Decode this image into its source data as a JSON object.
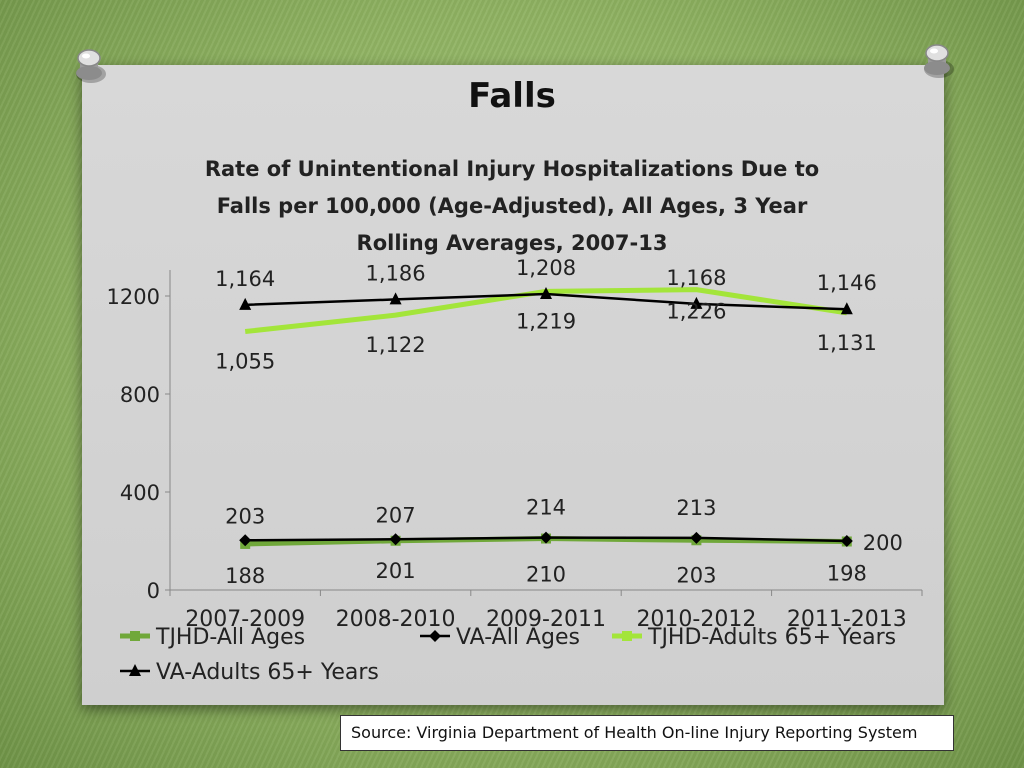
{
  "slide": {
    "title": "Falls",
    "source": "Source: Virginia Department of Health On-line Injury Reporting System"
  },
  "chart_data": {
    "type": "line",
    "title": "Rate of Unintentional Injury Hospitalizations Due to Falls per 100,000 (Age-Adjusted), All Ages, 3 Year Rolling Averages, 2007-13",
    "title_lines": [
      "Rate of Unintentional Injury Hospitalizations Due to",
      "Falls per 100,000 (Age-Adjusted), All Ages, 3 Year",
      "Rolling Averages, 2007-13"
    ],
    "categories": [
      "2007-2009",
      "2008-2010",
      "2009-2011",
      "2010-2012",
      "2011-2013"
    ],
    "ylim": [
      0,
      1200
    ],
    "yticks": [
      0,
      400,
      800,
      1200
    ],
    "grid": false,
    "legend_position": "bottom",
    "series": [
      {
        "name": "TJHD-All Ages",
        "values": [
          188,
          201,
          210,
          203,
          198
        ],
        "labels": [
          "188",
          "201",
          "210",
          "203",
          "198"
        ],
        "color": "#70a83a",
        "marker": "square"
      },
      {
        "name": "VA-All Ages",
        "values": [
          203,
          207,
          214,
          213,
          200
        ],
        "labels": [
          "203",
          "207",
          "214",
          "213",
          "200"
        ],
        "color": "#000000",
        "marker": "diamond"
      },
      {
        "name": "TJHD-Adults 65+ Years",
        "values": [
          1055,
          1122,
          1219,
          1226,
          1131
        ],
        "labels": [
          "1,055",
          "1,122",
          "1,219",
          "1,226",
          "1,131"
        ],
        "color": "#a3e53a",
        "marker": "none"
      },
      {
        "name": "VA-Adults 65+ Years",
        "values": [
          1164,
          1186,
          1208,
          1168,
          1146
        ],
        "labels": [
          "1,164",
          "1,186",
          "1,208",
          "1,168",
          "1,146"
        ],
        "color": "#000000",
        "marker": "triangle"
      }
    ]
  }
}
